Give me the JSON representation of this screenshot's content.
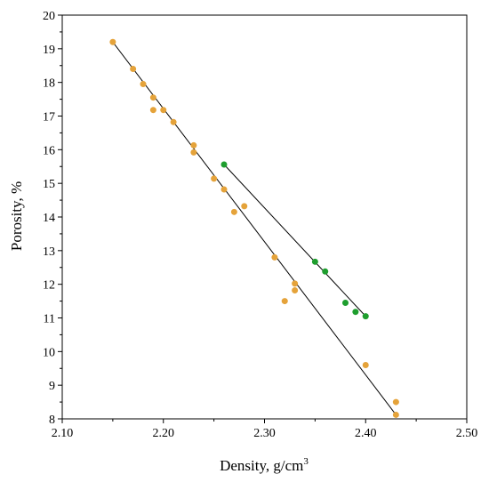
{
  "chart_data": {
    "type": "scatter",
    "xlabel": "Density, g/cm",
    "xlabel_sup": "3",
    "ylabel": "Porosity, %",
    "xlim": [
      2.1,
      2.5
    ],
    "ylim": [
      8,
      20
    ],
    "x_ticks": [
      "2.10",
      "2.20",
      "2.30",
      "2.40",
      "2.50"
    ],
    "y_ticks": [
      "8",
      "9",
      "10",
      "11",
      "12",
      "13",
      "14",
      "15",
      "16",
      "17",
      "18",
      "19",
      "20"
    ],
    "grid": false,
    "series": [
      {
        "color": "#e5a33a",
        "points": [
          [
            2.15,
            19.2
          ],
          [
            2.17,
            18.4
          ],
          [
            2.18,
            17.95
          ],
          [
            2.19,
            17.55
          ],
          [
            2.19,
            17.18
          ],
          [
            2.2,
            17.18
          ],
          [
            2.21,
            16.82
          ],
          [
            2.23,
            16.13
          ],
          [
            2.23,
            15.92
          ],
          [
            2.25,
            15.14
          ],
          [
            2.26,
            14.82
          ],
          [
            2.27,
            14.15
          ],
          [
            2.28,
            14.32
          ],
          [
            2.31,
            12.8
          ],
          [
            2.32,
            11.5
          ],
          [
            2.33,
            12.02
          ],
          [
            2.33,
            11.82
          ],
          [
            2.4,
            9.6
          ],
          [
            2.43,
            8.5
          ],
          [
            2.43,
            8.12
          ]
        ],
        "fit": [
          [
            2.15,
            19.2
          ],
          [
            2.43,
            8.12
          ]
        ]
      },
      {
        "color": "#1e9e2e",
        "points": [
          [
            2.26,
            15.56
          ],
          [
            2.35,
            12.67
          ],
          [
            2.36,
            12.38
          ],
          [
            2.38,
            11.45
          ],
          [
            2.39,
            11.18
          ],
          [
            2.4,
            11.05
          ]
        ],
        "fit": [
          [
            2.26,
            15.56
          ],
          [
            2.4,
            11.05
          ]
        ]
      }
    ]
  }
}
